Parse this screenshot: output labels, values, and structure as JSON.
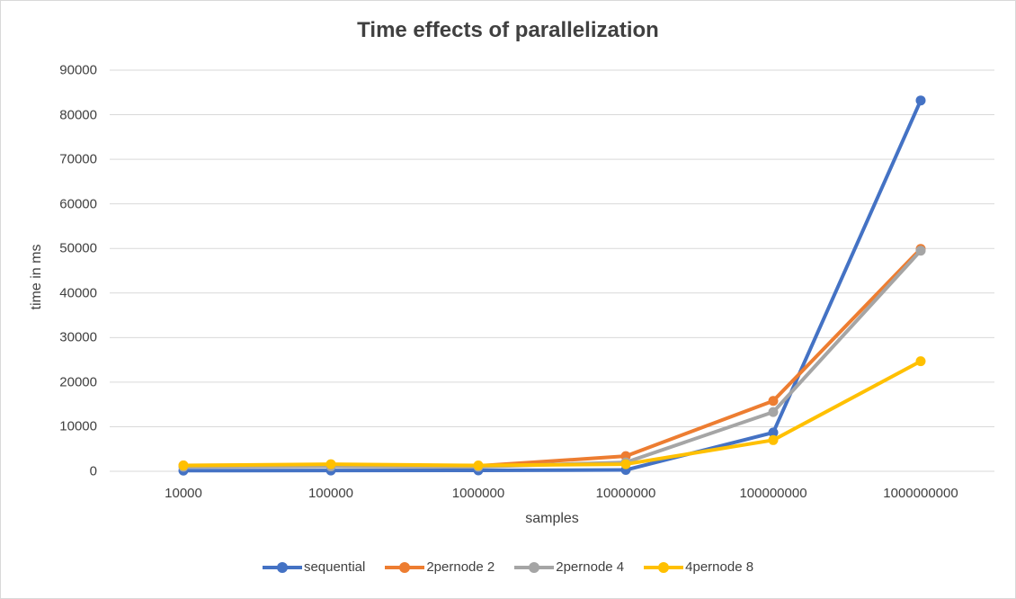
{
  "chart_data": {
    "type": "line",
    "title": "Time effects of parallelization",
    "xlabel": "samples",
    "ylabel": "time in ms",
    "categories": [
      "10000",
      "100000",
      "1000000",
      "10000000",
      "100000000",
      "1000000000"
    ],
    "ylim": [
      0,
      90000
    ],
    "yticks": [
      "0",
      "10000",
      "20000",
      "30000",
      "40000",
      "50000",
      "60000",
      "70000",
      "80000",
      "90000"
    ],
    "grid": true,
    "legend_position": "bottom",
    "series": [
      {
        "name": "sequential",
        "color": "#4472C4",
        "values": [
          150,
          170,
          200,
          300,
          8700,
          83200
        ]
      },
      {
        "name": "2pernode 2",
        "color": "#ED7D31",
        "values": [
          1300,
          1400,
          1200,
          3400,
          15800,
          49900
        ]
      },
      {
        "name": "2pernode 4",
        "color": "#A5A5A5",
        "values": [
          1000,
          1100,
          1000,
          2000,
          13300,
          49500
        ]
      },
      {
        "name": "4pernode 8",
        "color": "#FFC000",
        "values": [
          1300,
          1600,
          1300,
          1600,
          7000,
          24700
        ]
      }
    ]
  }
}
